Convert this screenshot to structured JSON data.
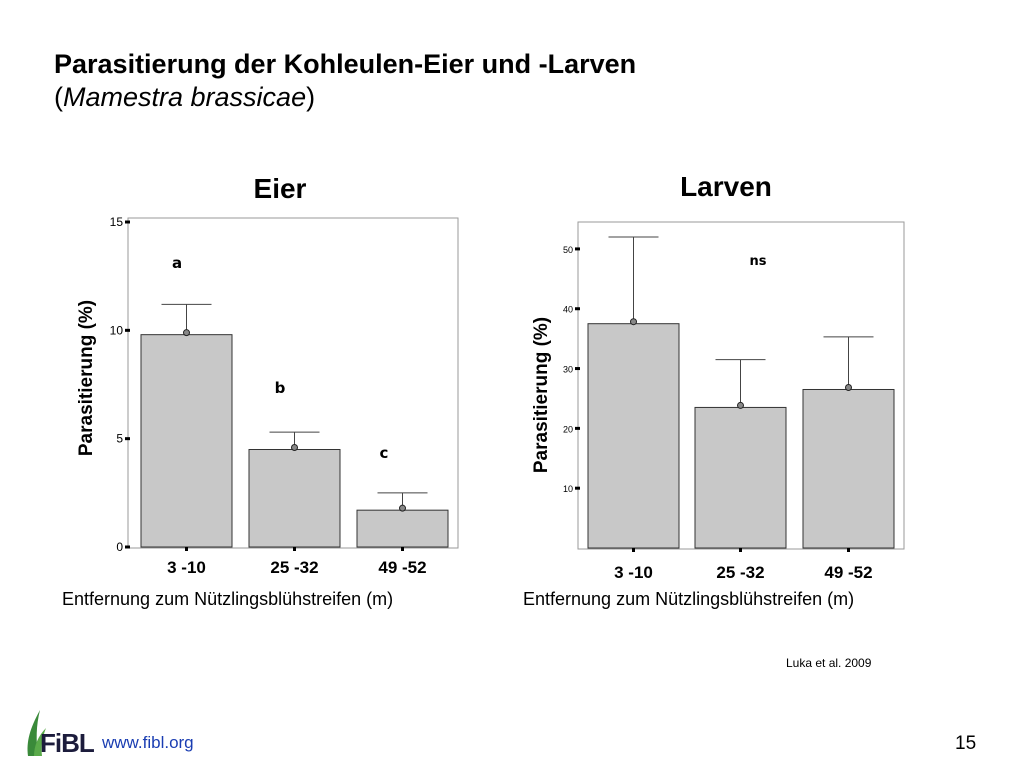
{
  "slide": {
    "title_line1": "Parasitierung der Kohleulen-Eier und -Larven",
    "title_open": "(",
    "title_italic": "Mamestra brassicae",
    "title_close": ")",
    "source": "Luka et al. 2009",
    "page_number": "15",
    "logo_text": "FiBL",
    "url": "www.fibl.org"
  },
  "chart_data": [
    {
      "type": "bar",
      "title": "Eier",
      "xlabel": "Entfernung zum Nützlingsblühstreifen (m)",
      "ylabel": "Parasitierung (%)",
      "categories": [
        "3 -10",
        "25 -32",
        "49 -52"
      ],
      "values": [
        9.8,
        4.5,
        1.7
      ],
      "error_upper": [
        11.2,
        5.3,
        2.5
      ],
      "significance": [
        "a",
        "b",
        "c"
      ],
      "ylim": [
        0,
        15
      ],
      "yticks": [
        0,
        5,
        10,
        15
      ],
      "grid": false
    },
    {
      "type": "bar",
      "title": "Larven",
      "xlabel": "Entfernung zum Nützlingsblühstreifen (m)",
      "ylabel": "Parasitierung (%)",
      "categories": [
        "3 -10",
        "25 -32",
        "49 -52"
      ],
      "values": [
        37.5,
        23.5,
        26.5
      ],
      "error_upper": [
        52,
        31.5,
        35.3
      ],
      "significance_label": "ns",
      "ylim": [
        0,
        54
      ],
      "yticks": [
        10,
        20,
        30,
        40,
        50
      ],
      "grid": false
    }
  ],
  "colors": {
    "bar_fill": "#c8c8c8",
    "bar_stroke": "#333333",
    "frame": "#9a9a9a",
    "logo_green": "#3a8a3a",
    "url": "#1a3db2"
  }
}
